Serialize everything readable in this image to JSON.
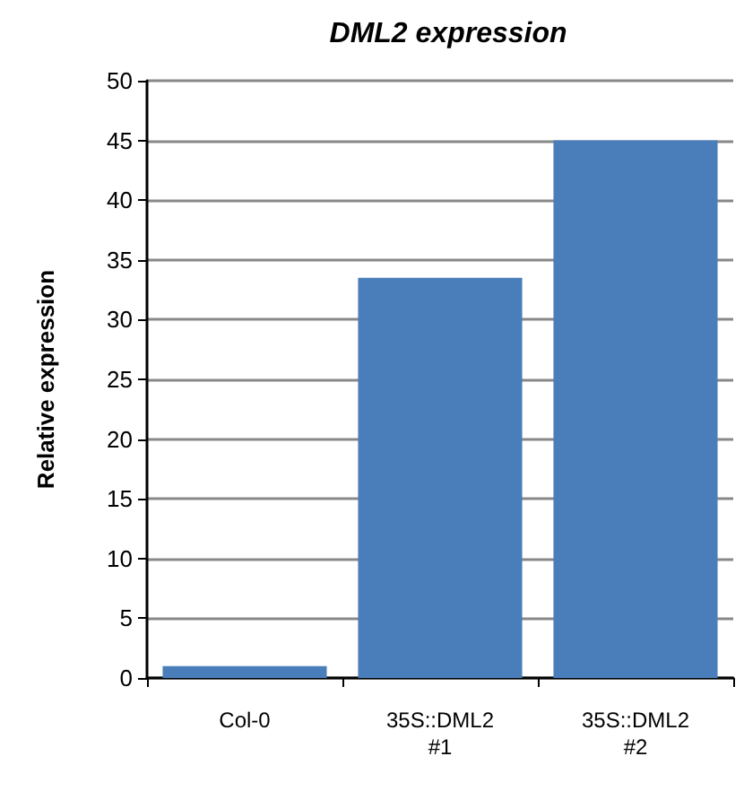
{
  "chart_data": {
    "type": "bar",
    "title": "DML2 expression",
    "ylabel": "Relative expression",
    "categories": [
      "Col-0",
      "35S::DML2\n#1",
      "35S::DML2\n#2"
    ],
    "values": [
      1,
      33.5,
      45
    ],
    "color": "#4a7ebb",
    "ylim": [
      0,
      50
    ],
    "yticks": [
      0,
      5,
      10,
      15,
      20,
      25,
      30,
      35,
      40,
      45,
      50
    ],
    "grid": "y"
  }
}
